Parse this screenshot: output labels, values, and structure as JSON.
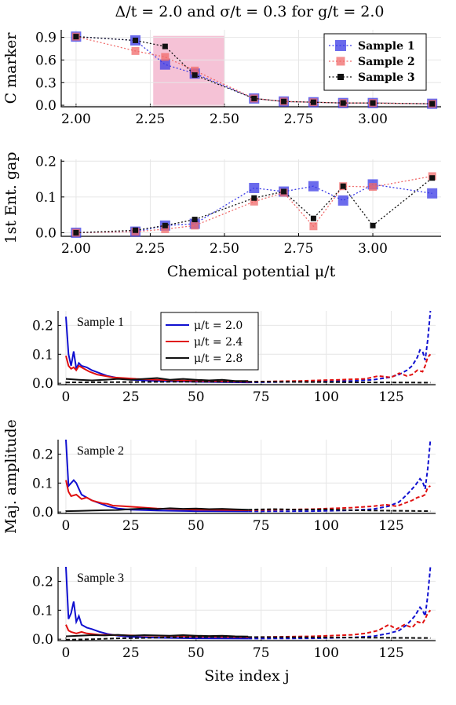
{
  "title": "Δ/t = 2.0 and σ/t = 0.3 for g/t = 2.0",
  "chart_data": [
    {
      "id": "c-marker",
      "type": "line",
      "ylabel": "C marker",
      "xlabel": "",
      "xlim": [
        1.95,
        3.23
      ],
      "ylim": [
        -0.02,
        1.0
      ],
      "xticks": [
        "2.00",
        "2.25",
        "2.50",
        "2.75",
        "3.00"
      ],
      "xtick_values": [
        2.0,
        2.25,
        2.5,
        2.75,
        3.0
      ],
      "yticks": [
        "0.0",
        "0.3",
        "0.6",
        "0.9"
      ],
      "ytick_values": [
        0.0,
        0.3,
        0.6,
        0.9
      ],
      "shaded_region": {
        "x": [
          2.26,
          2.5
        ],
        "color": "#f5c2d6"
      },
      "legend_position": "top-right",
      "x": [
        2.0,
        2.2,
        2.3,
        2.4,
        2.6,
        2.7,
        2.8,
        2.9,
        3.0,
        3.2
      ],
      "series": [
        {
          "name": "Sample 1",
          "color": "#3a3ae6",
          "marker_size": 13,
          "values": [
            0.91,
            0.86,
            0.54,
            0.42,
            0.09,
            0.05,
            0.04,
            0.03,
            0.03,
            0.02
          ]
        },
        {
          "name": "Sample 2",
          "color": "#f06a6a",
          "marker_size": 10,
          "values": [
            0.91,
            0.72,
            0.64,
            0.46,
            0.09,
            0.05,
            0.04,
            0.03,
            0.03,
            0.02
          ]
        },
        {
          "name": "Sample 3",
          "color": "#111111",
          "marker_size": 7,
          "values": [
            0.91,
            0.86,
            0.78,
            0.4,
            0.09,
            0.05,
            0.04,
            0.03,
            0.03,
            0.02
          ]
        }
      ]
    },
    {
      "id": "ent-gap",
      "type": "line",
      "ylabel": "1st Ent. gap",
      "xlabel": "Chemical potential μ/t",
      "xlim": [
        1.95,
        3.23
      ],
      "ylim": [
        -0.01,
        0.205
      ],
      "xticks": [
        "2.00",
        "2.25",
        "2.50",
        "2.75",
        "3.00"
      ],
      "xtick_values": [
        2.0,
        2.25,
        2.5,
        2.75,
        3.0
      ],
      "yticks": [
        "0.0",
        "0.1",
        "0.2"
      ],
      "ytick_values": [
        0.0,
        0.1,
        0.2
      ],
      "x": [
        2.0,
        2.2,
        2.3,
        2.4,
        2.6,
        2.7,
        2.8,
        2.9,
        3.0,
        3.2
      ],
      "series": [
        {
          "name": "Sample 1",
          "color": "#3a3ae6",
          "marker_size": 13,
          "values": [
            0.0,
            0.003,
            0.02,
            0.025,
            0.125,
            0.115,
            0.13,
            0.09,
            0.135,
            0.11
          ]
        },
        {
          "name": "Sample 2",
          "color": "#f06a6a",
          "marker_size": 10,
          "values": [
            0.0,
            0.003,
            0.01,
            0.02,
            0.087,
            0.112,
            0.018,
            0.13,
            0.128,
            0.158
          ]
        },
        {
          "name": "Sample 3",
          "color": "#111111",
          "marker_size": 7,
          "values": [
            0.0,
            0.007,
            0.02,
            0.037,
            0.097,
            0.115,
            0.04,
            0.13,
            0.02,
            0.153
          ]
        }
      ]
    },
    {
      "id": "maj-1",
      "type": "line",
      "sample_label": "Sample 1",
      "xlim": [
        -3,
        142
      ],
      "ylim": [
        -0.005,
        0.25
      ],
      "xticks": [
        "0",
        "25",
        "50",
        "75",
        "100",
        "125"
      ],
      "xtick_values": [
        0,
        25,
        50,
        75,
        100,
        125
      ],
      "yticks": [
        "0.0",
        "0.1",
        "0.2"
      ],
      "ytick_values": [
        0.0,
        0.1,
        0.2
      ],
      "legend": [
        {
          "label": "μ/t = 2.0",
          "color": "#1010d0"
        },
        {
          "label": "μ/t = 2.4",
          "color": "#e01010"
        },
        {
          "label": "μ/t = 2.8",
          "color": "#111111"
        }
      ],
      "series": [
        {
          "color": "#1010d0",
          "style": "solid",
          "x": [
            0,
            1,
            2,
            3,
            4,
            5,
            6,
            8,
            10,
            13,
            16,
            20,
            25,
            35,
            50,
            70
          ],
          "values": [
            0.23,
            0.1,
            0.06,
            0.11,
            0.05,
            0.07,
            0.06,
            0.055,
            0.045,
            0.035,
            0.025,
            0.018,
            0.012,
            0.008,
            0.005,
            0.003
          ]
        },
        {
          "color": "#1010d0",
          "style": "dashed",
          "x": [
            70,
            90,
            110,
            118,
            124,
            128,
            131,
            133,
            135,
            136,
            137,
            138,
            139,
            140
          ],
          "values": [
            0.003,
            0.005,
            0.008,
            0.012,
            0.02,
            0.03,
            0.045,
            0.06,
            0.09,
            0.115,
            0.11,
            0.08,
            0.15,
            0.25
          ]
        },
        {
          "color": "#e01010",
          "style": "solid",
          "x": [
            0,
            1,
            2,
            3,
            4,
            5,
            7,
            9,
            12,
            15,
            18,
            22,
            27,
            35,
            50,
            70
          ],
          "values": [
            0.095,
            0.06,
            0.05,
            0.055,
            0.045,
            0.06,
            0.05,
            0.04,
            0.03,
            0.025,
            0.02,
            0.018,
            0.015,
            0.012,
            0.008,
            0.005
          ]
        },
        {
          "color": "#e01010",
          "style": "dashed",
          "x": [
            70,
            90,
            105,
            115,
            120,
            125,
            128,
            131,
            133,
            135,
            137,
            138,
            139,
            140
          ],
          "values": [
            0.005,
            0.008,
            0.012,
            0.015,
            0.025,
            0.02,
            0.035,
            0.025,
            0.03,
            0.045,
            0.04,
            0.06,
            0.09,
            0.1
          ]
        },
        {
          "color": "#111111",
          "style": "solid",
          "x": [
            0,
            5,
            10,
            15,
            20,
            25,
            30,
            35,
            40,
            45,
            50,
            55,
            60,
            65,
            70
          ],
          "values": [
            0.015,
            0.012,
            0.01,
            0.012,
            0.015,
            0.012,
            0.015,
            0.018,
            0.012,
            0.015,
            0.012,
            0.01,
            0.012,
            0.008,
            0.008
          ]
        },
        {
          "color": "#111111",
          "style": "dashed",
          "x": [
            0,
            20,
            40,
            60,
            80,
            100,
            120,
            140
          ],
          "values": [
            0.003,
            0.004,
            0.005,
            0.005,
            0.005,
            0.004,
            0.003,
            0.002
          ]
        }
      ]
    },
    {
      "id": "maj-2",
      "type": "line",
      "sample_label": "Sample 2",
      "ylabel": "Maj. amplitude",
      "xlim": [
        -3,
        142
      ],
      "ylim": [
        -0.005,
        0.25
      ],
      "xticks": [
        "0",
        "25",
        "50",
        "75",
        "100",
        "125"
      ],
      "xtick_values": [
        0,
        25,
        50,
        75,
        100,
        125
      ],
      "yticks": [
        "0.0",
        "0.1",
        "0.2"
      ],
      "ytick_values": [
        0.0,
        0.1,
        0.2
      ],
      "series": [
        {
          "color": "#1010d0",
          "style": "solid",
          "x": [
            0,
            1,
            2,
            3,
            4,
            5,
            6,
            8,
            10,
            13,
            16,
            20,
            25,
            35,
            50,
            70
          ],
          "values": [
            0.25,
            0.09,
            0.1,
            0.11,
            0.1,
            0.08,
            0.06,
            0.05,
            0.04,
            0.03,
            0.02,
            0.012,
            0.008,
            0.005,
            0.003,
            0.002
          ]
        },
        {
          "color": "#1010d0",
          "style": "dashed",
          "x": [
            70,
            95,
            110,
            118,
            124,
            128,
            131,
            134,
            136,
            137,
            138,
            139,
            140
          ],
          "values": [
            0.002,
            0.003,
            0.006,
            0.01,
            0.02,
            0.035,
            0.06,
            0.09,
            0.115,
            0.105,
            0.08,
            0.15,
            0.25
          ]
        },
        {
          "color": "#e01010",
          "style": "solid",
          "x": [
            0,
            1,
            2,
            4,
            6,
            8,
            10,
            12,
            14,
            16,
            18,
            22,
            27,
            35,
            50,
            70
          ],
          "values": [
            0.11,
            0.07,
            0.055,
            0.06,
            0.045,
            0.05,
            0.04,
            0.035,
            0.03,
            0.028,
            0.022,
            0.02,
            0.017,
            0.012,
            0.008,
            0.006
          ]
        },
        {
          "color": "#e01010",
          "style": "dashed",
          "x": [
            70,
            95,
            110,
            118,
            123,
            127,
            130,
            133,
            135,
            137,
            138,
            139,
            140
          ],
          "values": [
            0.006,
            0.01,
            0.015,
            0.02,
            0.025,
            0.02,
            0.03,
            0.04,
            0.05,
            0.055,
            0.06,
            0.085,
            0.09
          ]
        },
        {
          "color": "#111111",
          "style": "solid",
          "x": [
            0,
            5,
            10,
            15,
            20,
            25,
            30,
            35,
            40,
            45,
            50,
            55,
            60,
            65,
            70
          ],
          "values": [
            0.003,
            0.004,
            0.005,
            0.006,
            0.007,
            0.01,
            0.012,
            0.01,
            0.013,
            0.011,
            0.012,
            0.01,
            0.011,
            0.009,
            0.008
          ]
        },
        {
          "color": "#111111",
          "style": "dashed",
          "x": [
            70,
            80,
            90,
            100,
            110,
            120,
            130,
            140
          ],
          "values": [
            0.008,
            0.01,
            0.008,
            0.009,
            0.006,
            0.005,
            0.004,
            0.003
          ]
        }
      ]
    },
    {
      "id": "maj-3",
      "type": "line",
      "sample_label": "Sample 3",
      "xlabel": "Site index j",
      "xlim": [
        -3,
        142
      ],
      "ylim": [
        -0.005,
        0.25
      ],
      "xticks": [
        "0",
        "25",
        "50",
        "75",
        "100",
        "125"
      ],
      "xtick_values": [
        0,
        25,
        50,
        75,
        100,
        125
      ],
      "yticks": [
        "0.0",
        "0.1",
        "0.2"
      ],
      "ytick_values": [
        0.0,
        0.1,
        0.2
      ],
      "series": [
        {
          "color": "#1010d0",
          "style": "solid",
          "x": [
            0,
            1,
            2,
            3,
            4,
            5,
            6,
            8,
            10,
            13,
            16,
            20,
            25,
            35,
            50,
            70
          ],
          "values": [
            0.25,
            0.07,
            0.09,
            0.13,
            0.06,
            0.08,
            0.05,
            0.04,
            0.035,
            0.025,
            0.018,
            0.012,
            0.008,
            0.005,
            0.003,
            0.002
          ]
        },
        {
          "color": "#1010d0",
          "style": "dashed",
          "x": [
            70,
            95,
            110,
            118,
            124,
            128,
            131,
            134,
            136,
            137,
            138,
            139,
            140
          ],
          "values": [
            0.002,
            0.003,
            0.006,
            0.01,
            0.02,
            0.03,
            0.05,
            0.08,
            0.11,
            0.1,
            0.08,
            0.15,
            0.25
          ]
        },
        {
          "color": "#e01010",
          "style": "solid",
          "x": [
            0,
            1,
            2,
            4,
            6,
            8,
            10,
            13,
            16,
            20,
            25,
            35,
            50,
            70
          ],
          "values": [
            0.05,
            0.03,
            0.025,
            0.02,
            0.025,
            0.02,
            0.018,
            0.015,
            0.015,
            0.014,
            0.013,
            0.012,
            0.009,
            0.007
          ]
        },
        {
          "color": "#e01010",
          "style": "dashed",
          "x": [
            70,
            95,
            110,
            115,
            120,
            124,
            127,
            130,
            133,
            135,
            137,
            138,
            139,
            140
          ],
          "values": [
            0.007,
            0.01,
            0.015,
            0.02,
            0.03,
            0.05,
            0.035,
            0.05,
            0.04,
            0.06,
            0.055,
            0.07,
            0.09,
            0.1
          ]
        },
        {
          "color": "#111111",
          "style": "solid",
          "x": [
            0,
            5,
            10,
            15,
            20,
            25,
            30,
            35,
            40,
            45,
            50,
            55,
            60,
            65,
            70
          ],
          "values": [
            0.01,
            0.012,
            0.014,
            0.013,
            0.015,
            0.012,
            0.014,
            0.013,
            0.012,
            0.014,
            0.012,
            0.011,
            0.012,
            0.01,
            0.009
          ]
        },
        {
          "color": "#111111",
          "style": "dashed",
          "x": [
            0,
            10,
            20,
            40,
            60,
            80,
            100,
            120,
            140
          ],
          "values": [
            -0.002,
            0.0,
            0.003,
            0.006,
            0.008,
            0.007,
            0.006,
            0.005,
            0.004
          ]
        }
      ]
    }
  ]
}
